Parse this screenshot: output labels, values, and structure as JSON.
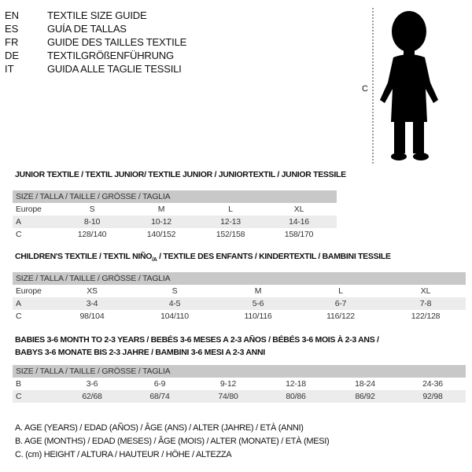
{
  "titles": [
    {
      "code": "EN",
      "text": "TEXTILE SIZE GUIDE"
    },
    {
      "code": "ES",
      "text": "GUÍA DE TALLAS"
    },
    {
      "code": "FR",
      "text": "GUIDE DES TAILLES TEXTILE"
    },
    {
      "code": "DE",
      "text": "TEXTILGRÖßENFÜHRUNG"
    },
    {
      "code": "IT",
      "text": "GUIDA ALLE TAGLIE TESSILI"
    }
  ],
  "figure": {
    "label": "C"
  },
  "junior": {
    "title": "JUNIOR TEXTILE / TEXTIL JUNIOR/ TEXTILE JUNIOR / JUNIORTEXTIL / JUNIOR TESSILE",
    "header": "SIZE / TALLA / TAILLE / GRÖSSE / TAGLIA",
    "rows": [
      {
        "label": "Europe",
        "cells": [
          "S",
          "M",
          "L",
          "XL"
        ]
      },
      {
        "label": "A",
        "cells": [
          "8-10",
          "10-12",
          "12-13",
          "14-16"
        ]
      },
      {
        "label": "C",
        "cells": [
          "128/140",
          "140/152",
          "152/158",
          "158/170"
        ]
      }
    ]
  },
  "children": {
    "title_a": "CHILDREN'S TEXTILE / TEXTIL NIÑO",
    "title_sub": "/A",
    "title_b": " / TEXTILE DES ENFANTS / KINDERTEXTIL / BAMBINI TESSILE",
    "header": "SIZE / TALLA / TAILLE / GRÖSSE / TAGLIA",
    "rows": [
      {
        "label": "Europe",
        "cells": [
          "XS",
          "S",
          "M",
          "L",
          "XL"
        ]
      },
      {
        "label": "A",
        "cells": [
          "3-4",
          "4-5",
          "5-6",
          "6-7",
          "7-8"
        ]
      },
      {
        "label": "C",
        "cells": [
          "98/104",
          "104/110",
          "110/116",
          "116/122",
          "122/128"
        ]
      }
    ]
  },
  "babies": {
    "title_1": "BABIES 3-6 MONTH TO 2-3 YEARS / BEBÉS 3-6 MESES A 2-3 AÑOS / BÉBÉS 3-6 MOIS À 2-3 ANS /",
    "title_2": "BABYS 3-6 MONATE BIS 2-3 JAHRE / BAMBINI 3-6 MESI A 2-3 ANNI",
    "header": "SIZE / TALLA / TAILLE / GRÖSSE / TAGLIA",
    "rows": [
      {
        "label": "B",
        "cells": [
          "3-6",
          "6-9",
          "9-12",
          "12-18",
          "18-24",
          "24-36"
        ]
      },
      {
        "label": "C",
        "cells": [
          "62/68",
          "68/74",
          "74/80",
          "80/86",
          "86/92",
          "92/98"
        ]
      }
    ]
  },
  "notes": [
    "A. AGE (YEARS) / EDAD (AÑOS) / ÂGE (ANS) / ALTER (JAHRE) / ETÀ (ANNI)",
    "B. AGE (MONTHS) / EDAD (MESES) / ÂGE (MOIS) / ALTER (MONATE) / ETÀ (MESI)",
    "C. (cm) HEIGHT / ALTURA / HAUTEUR / HÖHE / ALTEZZA"
  ]
}
